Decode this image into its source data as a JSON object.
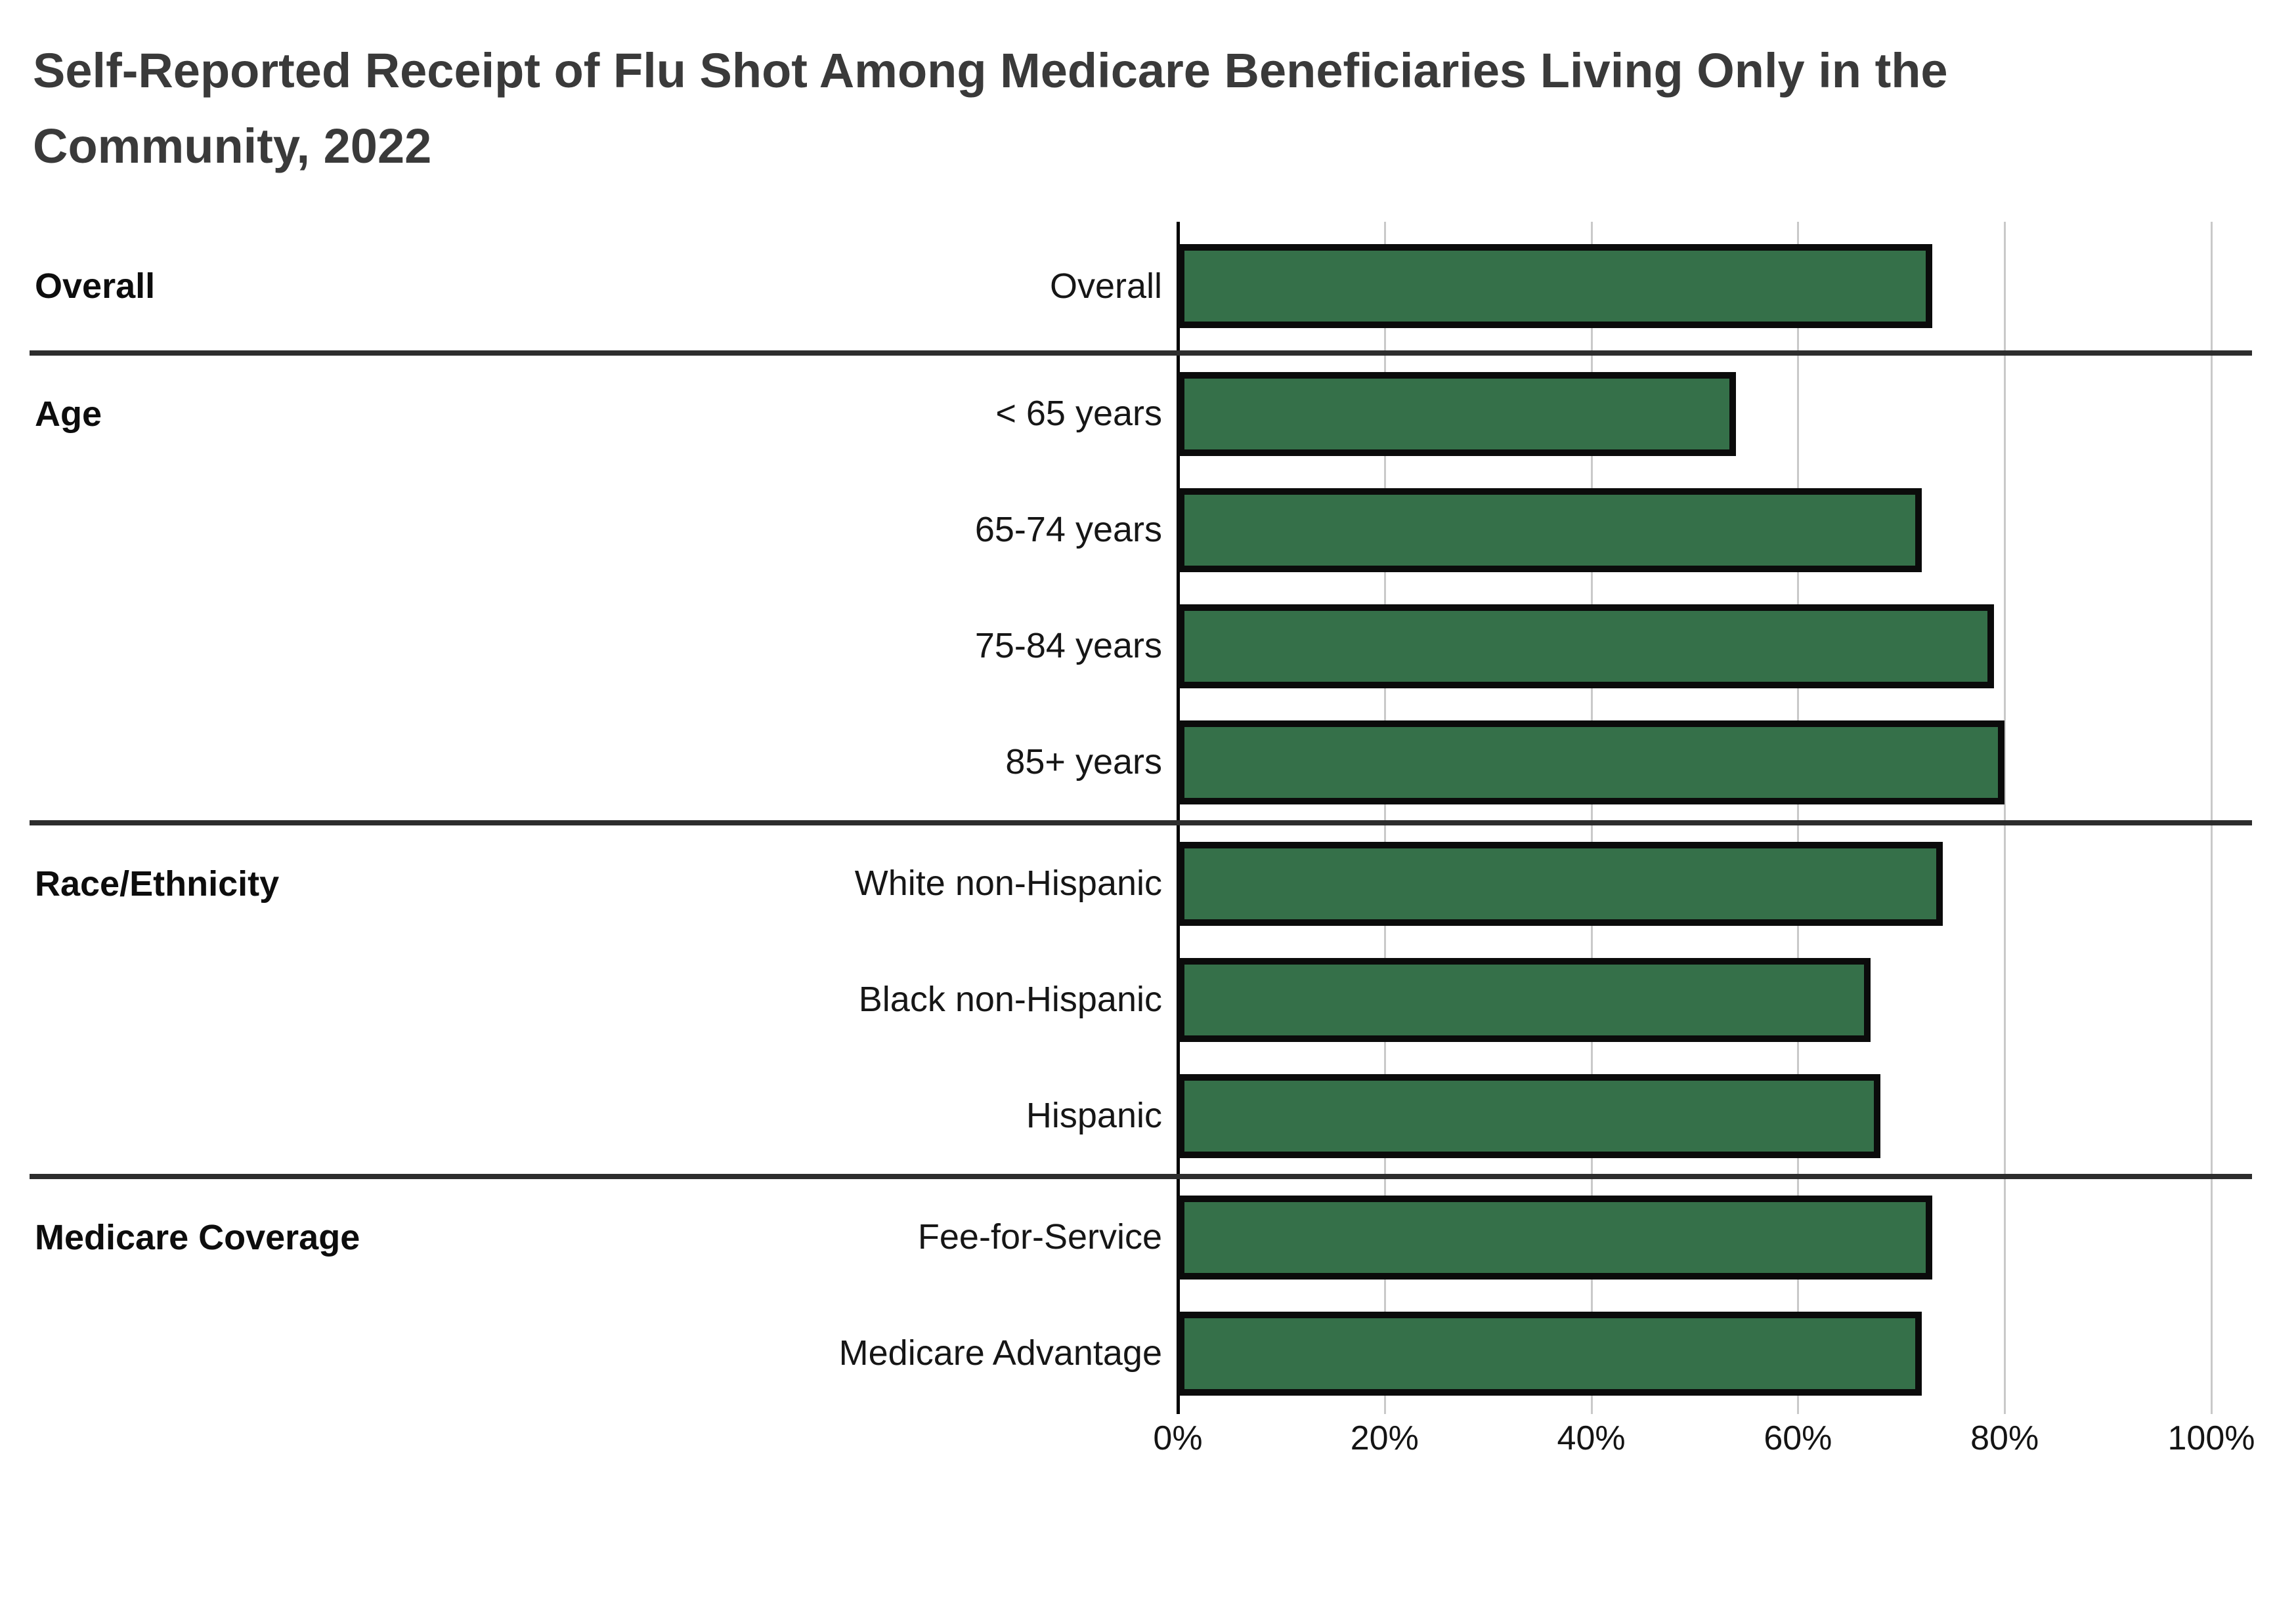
{
  "title": {
    "line1": "Self-Reported Receipt of Flu Shot Among Medicare Beneficiaries Living Only in the",
    "line2": "Community, 2022"
  },
  "colors": {
    "bar_fill": "#357049",
    "bar_border": "#0b0b0b",
    "gridline": "#c9c9c9",
    "axis_line": "#000000",
    "section_divider": "#2d2d2d",
    "title_text": "#3a3a3a",
    "label_text": "#161616"
  },
  "chart_data": {
    "type": "bar",
    "orientation": "horizontal",
    "title": "Self-Reported Receipt of Flu Shot Among Medicare Beneficiaries Living Only in the Community, 2022",
    "unit": "percent",
    "xlim": [
      0,
      100
    ],
    "x_tick_labels": [
      "0%",
      "20%",
      "40%",
      "60%",
      "80%",
      "100%"
    ],
    "x_tick_values": [
      0,
      20,
      40,
      60,
      80,
      100
    ],
    "grid": "vertical-gridlines-on",
    "legend": "none",
    "sections": [
      {
        "label": "Overall",
        "rows": [
          {
            "label": "Overall",
            "value": 73
          }
        ]
      },
      {
        "label": "Age",
        "rows": [
          {
            "label": "< 65 years",
            "value": 54
          },
          {
            "label": "65-74 years",
            "value": 72
          },
          {
            "label": "75-84 years",
            "value": 79
          },
          {
            "label": "85+ years",
            "value": 80
          }
        ]
      },
      {
        "label": "Race/Ethnicity",
        "rows": [
          {
            "label": "White non-Hispanic",
            "value": 74
          },
          {
            "label": "Black non-Hispanic",
            "value": 67
          },
          {
            "label": "Hispanic",
            "value": 68
          }
        ]
      },
      {
        "label": "Medicare Coverage",
        "rows": [
          {
            "label": "Fee-for-Service",
            "value": 73
          },
          {
            "label": "Medicare Advantage",
            "value": 72
          }
        ]
      }
    ]
  }
}
